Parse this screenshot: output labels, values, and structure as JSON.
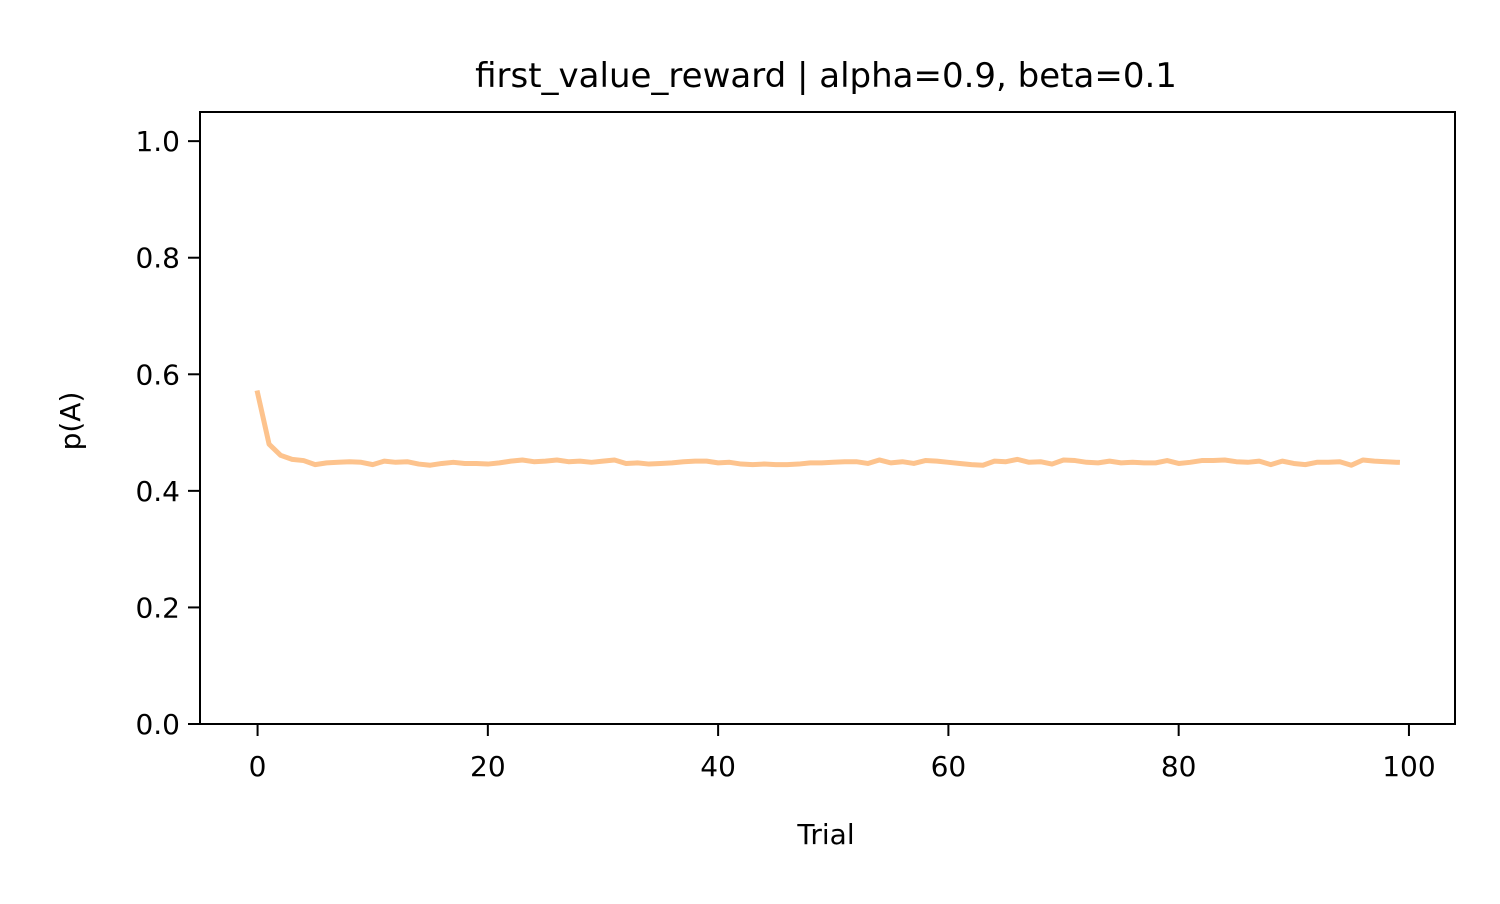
{
  "chart_data": {
    "type": "line",
    "title": "first_value_reward | alpha=0.9, beta=0.1",
    "xlabel": "Trial",
    "ylabel": "p(A)",
    "xlim": [
      -5,
      104
    ],
    "ylim": [
      0,
      1.05
    ],
    "xticks": [
      0,
      20,
      40,
      60,
      80,
      100
    ],
    "yticks": [
      0.0,
      0.2,
      0.4,
      0.6,
      0.8,
      1.0
    ],
    "xtick_labels": [
      "0",
      "20",
      "40",
      "60",
      "80",
      "100"
    ],
    "ytick_labels": [
      "0.0",
      "0.2",
      "0.4",
      "0.6",
      "0.8",
      "1.0"
    ],
    "grid": false,
    "series": [
      {
        "color": "#fdc38d",
        "x": [
          0,
          1,
          2,
          3,
          4,
          5,
          6,
          7,
          8,
          9,
          10,
          11,
          12,
          13,
          14,
          15,
          16,
          17,
          18,
          19,
          20,
          21,
          22,
          23,
          24,
          25,
          26,
          27,
          28,
          29,
          30,
          31,
          32,
          33,
          34,
          35,
          36,
          37,
          38,
          39,
          40,
          41,
          42,
          43,
          44,
          45,
          46,
          47,
          48,
          49,
          50,
          51,
          52,
          53,
          54,
          55,
          56,
          57,
          58,
          59,
          60,
          61,
          62,
          63,
          64,
          65,
          66,
          67,
          68,
          69,
          70,
          71,
          72,
          73,
          74,
          75,
          76,
          77,
          78,
          79,
          80,
          81,
          82,
          83,
          84,
          85,
          86,
          87,
          88,
          89,
          90,
          91,
          92,
          93,
          94,
          95,
          96,
          97,
          98,
          99
        ],
        "y": [
          0.568,
          0.48,
          0.461,
          0.454,
          0.452,
          0.445,
          0.448,
          0.449,
          0.45,
          0.449,
          0.445,
          0.451,
          0.449,
          0.45,
          0.446,
          0.444,
          0.447,
          0.449,
          0.447,
          0.447,
          0.446,
          0.448,
          0.451,
          0.453,
          0.45,
          0.451,
          0.453,
          0.45,
          0.451,
          0.449,
          0.451,
          0.453,
          0.447,
          0.448,
          0.446,
          0.447,
          0.448,
          0.45,
          0.451,
          0.451,
          0.448,
          0.449,
          0.446,
          0.445,
          0.446,
          0.445,
          0.445,
          0.446,
          0.448,
          0.448,
          0.449,
          0.45,
          0.45,
          0.447,
          0.453,
          0.448,
          0.45,
          0.447,
          0.452,
          0.451,
          0.449,
          0.447,
          0.445,
          0.444,
          0.451,
          0.45,
          0.454,
          0.449,
          0.45,
          0.446,
          0.453,
          0.452,
          0.449,
          0.448,
          0.451,
          0.448,
          0.449,
          0.448,
          0.448,
          0.452,
          0.447,
          0.449,
          0.452,
          0.452,
          0.453,
          0.45,
          0.449,
          0.451,
          0.445,
          0.451,
          0.447,
          0.445,
          0.449,
          0.449,
          0.45,
          0.444,
          0.453,
          0.451,
          0.45,
          0.449
        ]
      }
    ]
  }
}
